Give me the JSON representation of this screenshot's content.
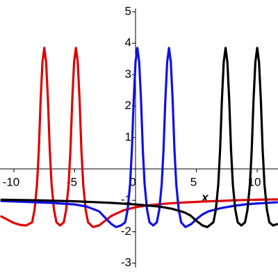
{
  "chart_data": {
    "type": "line",
    "x_label": "x",
    "xlim": [
      -11.14,
      11.71
    ],
    "ylim": [
      -3.14,
      5.11
    ],
    "xticks": [
      -10,
      -5,
      0,
      5,
      10
    ],
    "yticks": [
      -3,
      -2,
      -1,
      1,
      2,
      3,
      4,
      5
    ],
    "series": [
      {
        "color": "#e00000",
        "x": [
          -11.1,
          -10.5,
          -10,
          -9.5,
          -9,
          -8.5,
          -8.3,
          -8.1,
          -7.95,
          -7.8,
          -7.65,
          -7.5,
          -7.35,
          -7.2,
          -7.05,
          -6.9,
          -6.7,
          -6.5,
          -6.2,
          -5.9,
          -5.7,
          -5.5,
          -5.35,
          -5.2,
          -5.05,
          -4.9,
          -4.75,
          -4.6,
          -4.45,
          -4.3,
          -4.1,
          -3.9,
          -3.5,
          -3,
          -2.5,
          -2,
          -1,
          0,
          1,
          2,
          3,
          4,
          5,
          6,
          7,
          8,
          9,
          10,
          11.7
        ],
        "values": [
          -1.5,
          -1.62,
          -1.72,
          -1.78,
          -1.8,
          -1.7,
          -1.3,
          -0.5,
          0.6,
          2.2,
          3.4,
          3.85,
          3.4,
          2.2,
          0.6,
          -0.5,
          -1.3,
          -1.7,
          -1.8,
          -1.7,
          -1.3,
          -0.5,
          0.6,
          2.2,
          3.4,
          3.85,
          3.4,
          2.2,
          0.6,
          -0.5,
          -1.3,
          -1.7,
          -1.85,
          -1.8,
          -1.65,
          -1.5,
          -1.32,
          -1.22,
          -1.16,
          -1.12,
          -1.09,
          -1.07,
          -1.05,
          -1.03,
          -1.02,
          -1.0,
          -0.99,
          -0.98,
          -0.97
        ]
      },
      {
        "color": "#1010e8",
        "x": [
          -11.1,
          -9,
          -7,
          -5,
          -4,
          -3,
          -2.5,
          -2,
          -1.6,
          -1.2,
          -0.85,
          -0.65,
          -0.45,
          -0.3,
          -0.15,
          0,
          0.15,
          0.3,
          0.45,
          0.6,
          0.75,
          0.95,
          1.15,
          1.45,
          1.75,
          1.95,
          2.15,
          2.3,
          2.45,
          2.6,
          2.75,
          2.9,
          3.05,
          3.2,
          3.35,
          3.55,
          3.75,
          4.1,
          4.6,
          5,
          5.5,
          6,
          7,
          8,
          9,
          10,
          11.7
        ],
        "values": [
          -1.02,
          -1.05,
          -1.08,
          -1.13,
          -1.2,
          -1.35,
          -1.55,
          -1.75,
          -1.85,
          -1.8,
          -1.7,
          -1.3,
          -0.5,
          0.6,
          2.2,
          3.4,
          3.85,
          3.4,
          2.2,
          0.6,
          -0.5,
          -1.3,
          -1.7,
          -1.8,
          -1.7,
          -1.3,
          -0.5,
          0.6,
          2.2,
          3.4,
          3.85,
          3.4,
          2.2,
          0.6,
          -0.5,
          -1.3,
          -1.7,
          -1.85,
          -1.75,
          -1.6,
          -1.45,
          -1.35,
          -1.25,
          -1.18,
          -1.13,
          -1.1,
          -1.06
        ]
      },
      {
        "color": "#000000",
        "x": [
          -11.1,
          -8,
          -5,
          -2,
          0,
          2,
          3,
          4,
          4.5,
          5,
          5.5,
          5.9,
          6.4,
          6.6,
          6.8,
          6.95,
          7.1,
          7.25,
          7.4,
          7.55,
          7.7,
          7.85,
          8.0,
          8.2,
          8.4,
          8.7,
          9.0,
          9.2,
          9.4,
          9.55,
          9.7,
          9.85,
          10,
          10.15,
          10.3,
          10.45,
          10.6,
          10.8,
          11.0,
          11.3,
          11.7
        ],
        "values": [
          -0.98,
          -1.0,
          -1.03,
          -1.08,
          -1.13,
          -1.2,
          -1.27,
          -1.38,
          -1.48,
          -1.65,
          -1.8,
          -1.85,
          -1.7,
          -1.3,
          -0.5,
          0.6,
          2.2,
          3.4,
          3.85,
          3.4,
          2.2,
          0.6,
          -0.5,
          -1.3,
          -1.7,
          -1.8,
          -1.7,
          -1.3,
          -0.5,
          0.6,
          2.2,
          3.4,
          3.85,
          3.4,
          2.2,
          0.6,
          -0.5,
          -1.3,
          -1.7,
          -1.8,
          -1.75
        ]
      }
    ]
  }
}
